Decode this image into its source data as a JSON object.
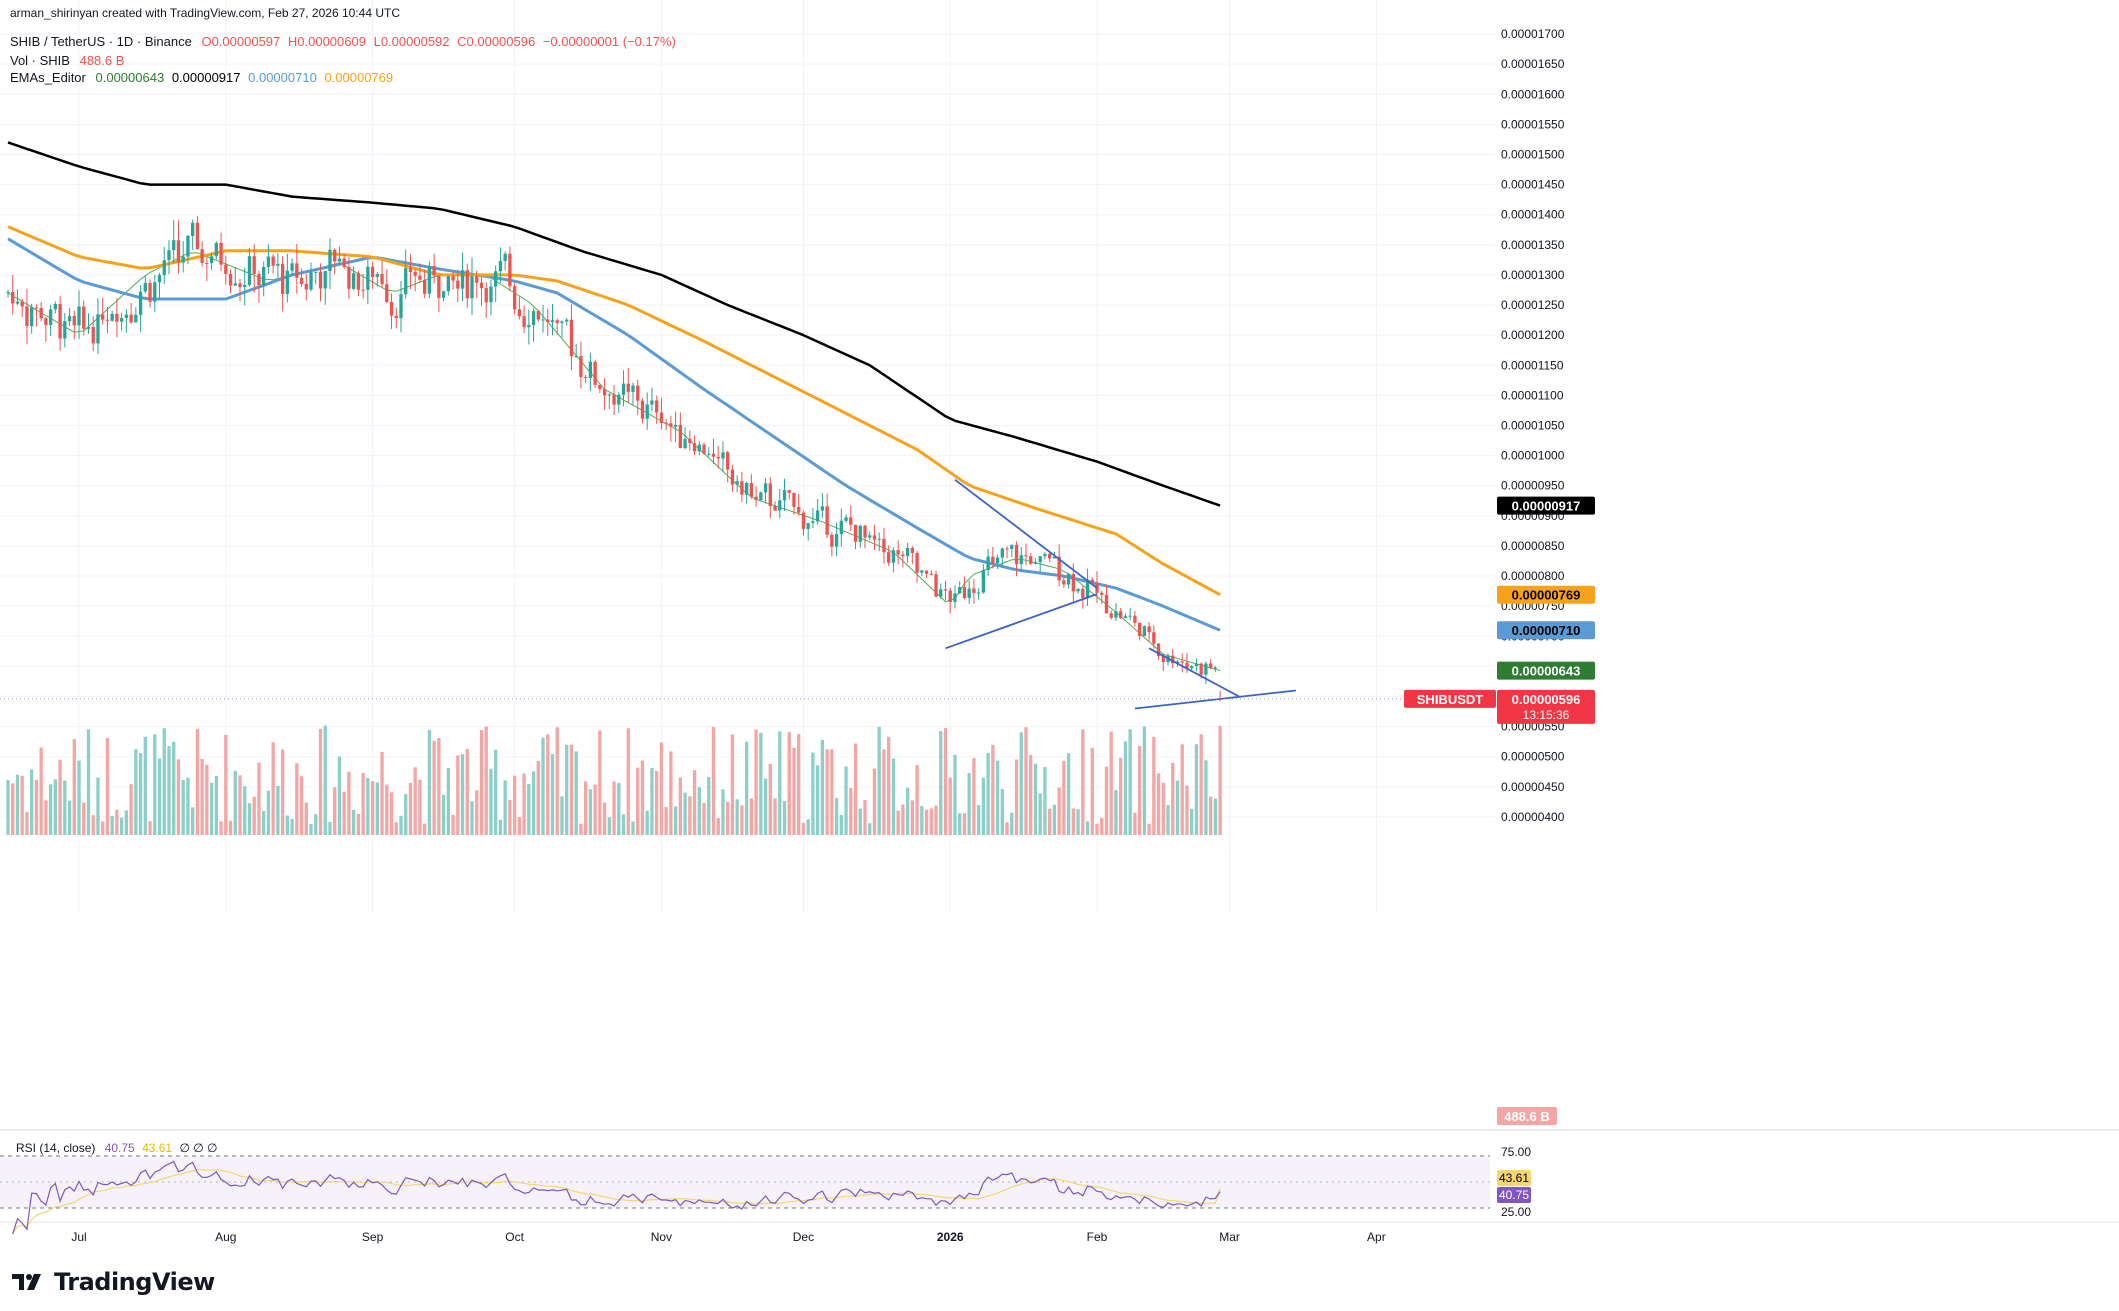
{
  "header": {
    "author_line": "arman_shirinyan created with TradingView.com, Feb 27, 2026 10:44 UTC",
    "symbol": "SHIB / TetherUS · 1D · Binance",
    "ohlc": {
      "o": "O0.00000597",
      "h": "H0.00000609",
      "l": "L0.00000592",
      "c": "C0.00000596",
      "chg": "−0.00000001 (−0.17%)"
    },
    "vol_label": "Vol · SHIB",
    "vol_value": "488.6 B",
    "ema_label": "EMAs_Editor",
    "ema_values": [
      "0.00000643",
      "0.00000917",
      "0.00000710",
      "0.00000769"
    ]
  },
  "price_axis": {
    "ticks": [
      "0.00001700",
      "0.00001650",
      "0.00001600",
      "0.00001550",
      "0.00001500",
      "0.00001450",
      "0.00001400",
      "0.00001350",
      "0.00001300",
      "0.00001250",
      "0.00001200",
      "0.00001150",
      "0.00001100",
      "0.00001050",
      "0.00001000",
      "0.00000950",
      "0.00000900",
      "0.00000850",
      "0.00000800",
      "0.00000750",
      "0.00000700",
      "0.00000650",
      "0.00000600",
      "0.00000550",
      "0.00000500",
      "0.00000450",
      "0.00000400"
    ],
    "badges": {
      "ema200": "0.00000917",
      "ema100": "0.00000769",
      "ema50": "0.00000710",
      "ema20": "0.00000643",
      "symbol": "SHIBUSDT",
      "last": "0.00000596",
      "countdown": "13:15:36",
      "volume": "488.6 B"
    }
  },
  "rsi": {
    "label": "RSI (14, close)",
    "rsi_value": "40.75",
    "ma_value": "43.61",
    "extra": "∅ ∅ ∅",
    "ticks": [
      "75.00",
      "25.00"
    ],
    "badge_ma": "43.61",
    "badge_rsi": "40.75"
  },
  "time_axis": [
    "Jul",
    "Aug",
    "Sep",
    "Oct",
    "Nov",
    "Dec",
    "2026",
    "Feb",
    "Mar",
    "Apr"
  ],
  "footer": {
    "brand": "TradingView"
  },
  "colors": {
    "up": "#26a69a",
    "down": "#ef5350",
    "vol_up": "#8ccfc8",
    "vol_down": "#f4a6a4",
    "ema20": "#4caf50",
    "ema50": "#5b9bd5",
    "ema100": "#f7a21b",
    "ema200": "#000000",
    "trendline": "#3a62c9",
    "rsi": "#7e57c2",
    "rsi_ma": "#f5d76e"
  },
  "chart_data": {
    "type": "candlestick",
    "title": "SHIB / TetherUS · 1D · Binance",
    "y_range": [
      3.7e-06,
      1.72e-05
    ],
    "x_range": [
      "2025-06-16",
      "2026-04-25"
    ],
    "last_price": 5.96e-06,
    "last_ohlc": {
      "open": 5.97e-06,
      "high": 6.09e-06,
      "low": 5.92e-06,
      "close": 5.96e-06
    },
    "ema_series": [
      {
        "name": "EMA 20",
        "last": 6.43e-06,
        "points": [
          [
            "2025-06-16",
            1.27e-05
          ],
          [
            "2025-07-01",
            1.2e-05
          ],
          [
            "2025-07-15",
            1.3e-05
          ],
          [
            "2025-07-25",
            1.34e-05
          ],
          [
            "2025-08-10",
            1.29e-05
          ],
          [
            "2025-08-25",
            1.32e-05
          ],
          [
            "2025-09-05",
            1.27e-05
          ],
          [
            "2025-09-15",
            1.3e-05
          ],
          [
            "2025-09-25",
            1.3e-05
          ],
          [
            "2025-10-05",
            1.25e-05
          ],
          [
            "2025-10-20",
            1.11e-05
          ],
          [
            "2025-11-05",
            1.04e-05
          ],
          [
            "2025-11-20",
            9.3e-06
          ],
          [
            "2025-12-05",
            8.9e-06
          ],
          [
            "2025-12-20",
            8.4e-06
          ],
          [
            "2026-01-01",
            7.5e-06
          ],
          [
            "2026-01-05",
            8e-06
          ],
          [
            "2026-01-15",
            8.3e-06
          ],
          [
            "2026-01-25",
            8.1e-06
          ],
          [
            "2026-02-05",
            7.4e-06
          ],
          [
            "2026-02-15",
            6.7e-06
          ],
          [
            "2026-02-27",
            6.43e-06
          ]
        ]
      },
      {
        "name": "EMA 50",
        "last": 7.1e-06,
        "points": [
          [
            "2025-06-16",
            1.36e-05
          ],
          [
            "2025-07-01",
            1.29e-05
          ],
          [
            "2025-07-15",
            1.26e-05
          ],
          [
            "2025-08-01",
            1.26e-05
          ],
          [
            "2025-08-15",
            1.3e-05
          ],
          [
            "2025-09-01",
            1.33e-05
          ],
          [
            "2025-09-15",
            1.31e-05
          ],
          [
            "2025-10-01",
            1.29e-05
          ],
          [
            "2025-10-10",
            1.27e-05
          ],
          [
            "2025-10-25",
            1.2e-05
          ],
          [
            "2025-11-10",
            1.11e-05
          ],
          [
            "2025-11-25",
            1.03e-05
          ],
          [
            "2025-12-10",
            9.5e-06
          ],
          [
            "2025-12-25",
            8.8e-06
          ],
          [
            "2026-01-05",
            8.3e-06
          ],
          [
            "2026-01-15",
            8.1e-06
          ],
          [
            "2026-01-25",
            8e-06
          ],
          [
            "2026-02-05",
            7.8e-06
          ],
          [
            "2026-02-15",
            7.5e-06
          ],
          [
            "2026-02-27",
            7.1e-06
          ]
        ]
      },
      {
        "name": "EMA 100",
        "last": 7.69e-06,
        "points": [
          [
            "2025-06-16",
            1.38e-05
          ],
          [
            "2025-07-01",
            1.33e-05
          ],
          [
            "2025-07-15",
            1.31e-05
          ],
          [
            "2025-08-01",
            1.34e-05
          ],
          [
            "2025-08-15",
            1.34e-05
          ],
          [
            "2025-09-01",
            1.33e-05
          ],
          [
            "2025-09-15",
            1.3e-05
          ],
          [
            "2025-10-01",
            1.3e-05
          ],
          [
            "2025-10-10",
            1.29e-05
          ],
          [
            "2025-10-25",
            1.25e-05
          ],
          [
            "2025-11-10",
            1.19e-05
          ],
          [
            "2025-11-25",
            1.13e-05
          ],
          [
            "2025-12-10",
            1.07e-05
          ],
          [
            "2025-12-25",
            1.01e-05
          ],
          [
            "2026-01-05",
            9.5e-06
          ],
          [
            "2026-01-20",
            9.1e-06
          ],
          [
            "2026-02-05",
            8.7e-06
          ],
          [
            "2026-02-15",
            8.2e-06
          ],
          [
            "2026-02-27",
            7.69e-06
          ]
        ]
      },
      {
        "name": "EMA 200",
        "last": 9.17e-06,
        "points": [
          [
            "2025-06-16",
            1.52e-05
          ],
          [
            "2025-07-01",
            1.48e-05
          ],
          [
            "2025-07-15",
            1.45e-05
          ],
          [
            "2025-08-01",
            1.45e-05
          ],
          [
            "2025-08-15",
            1.43e-05
          ],
          [
            "2025-09-01",
            1.42e-05
          ],
          [
            "2025-09-15",
            1.41e-05
          ],
          [
            "2025-10-01",
            1.38e-05
          ],
          [
            "2025-10-15",
            1.34e-05
          ],
          [
            "2025-11-01",
            1.3e-05
          ],
          [
            "2025-11-15",
            1.25e-05
          ],
          [
            "2025-12-01",
            1.2e-05
          ],
          [
            "2025-12-15",
            1.15e-05
          ],
          [
            "2026-01-01",
            1.06e-05
          ],
          [
            "2026-01-15",
            1.03e-05
          ],
          [
            "2026-02-01",
            9.9e-06
          ],
          [
            "2026-02-15",
            9.5e-06
          ],
          [
            "2026-02-27",
            9.17e-06
          ]
        ]
      }
    ],
    "trendlines": [
      {
        "name": "upper_1",
        "from": [
          "2026-01-02",
          9.6e-06
        ],
        "to": [
          "2026-02-01",
          7.8e-06
        ]
      },
      {
        "name": "lower_1",
        "from": [
          "2025-12-31",
          6.8e-06
        ],
        "to": [
          "2026-02-01",
          7.7e-06
        ]
      },
      {
        "name": "upper_2",
        "from": [
          "2026-02-12",
          6.8e-06
        ],
        "to": [
          "2026-03-03",
          6e-06
        ]
      },
      {
        "name": "lower_2",
        "from": [
          "2026-02-09",
          5.8e-06
        ],
        "to": [
          "2026-03-15",
          6.1e-06
        ]
      }
    ],
    "volume_last": "488.6 B",
    "rsi": {
      "value": 40.75,
      "ma": 43.61,
      "upper": 75,
      "lower": 25
    }
  }
}
